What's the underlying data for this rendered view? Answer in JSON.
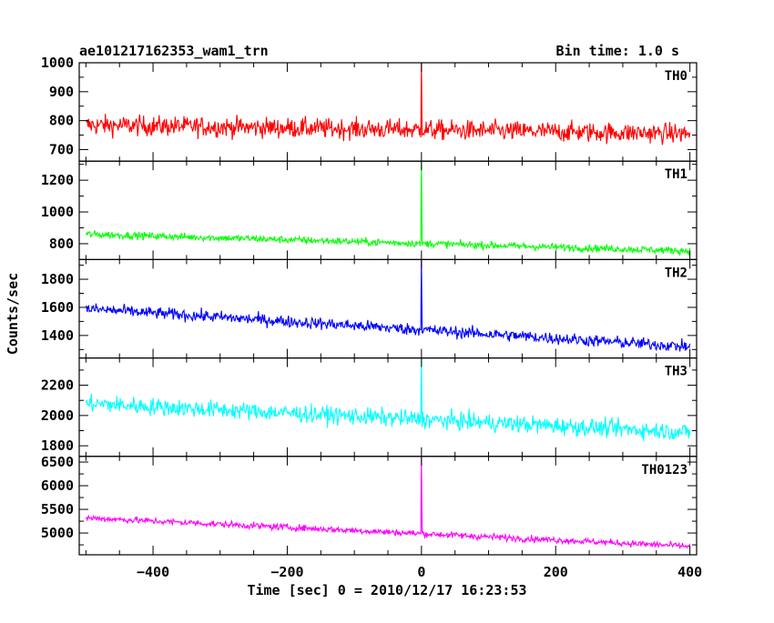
{
  "header": {
    "title": "ae101217162353_wam1_trn",
    "bin_time": "Bin time: 1.0 s"
  },
  "chart_data": {
    "type": "line",
    "title": "ae101217162353_wam1_trn",
    "xlabel": "Time [sec] 0 = 2010/12/17 16:23:53",
    "ylabel": "Counts/sec",
    "xlim": [
      -510,
      410
    ],
    "x_range": [
      -500,
      400
    ],
    "bin_time_s": 1.0,
    "x_ticks": [
      -400,
      -200,
      0,
      200,
      400
    ],
    "x_tick_labels": [
      "−400",
      "−200",
      "0",
      "200",
      "400"
    ],
    "grid": false,
    "series": [
      {
        "name": "TH0",
        "color": "#ff0000",
        "ylim": [
          660,
          1000
        ],
        "y_ticks": [
          700,
          800,
          900,
          1000
        ],
        "y_tick_labels": [
          "700",
          "800",
          "900",
          "1000"
        ],
        "trend_start": 785,
        "trend_end": 755,
        "noise_amplitude": 45,
        "spike_value": 1000
      },
      {
        "name": "TH1",
        "color": "#00ff00",
        "ylim": [
          700,
          1320
        ],
        "y_ticks": [
          800,
          1000,
          1200
        ],
        "y_tick_labels": [
          "800",
          "1000",
          "1200"
        ],
        "trend_start": 860,
        "trend_end": 755,
        "noise_amplitude": 30,
        "spike_value": 1320
      },
      {
        "name": "TH2",
        "color": "#0000ff",
        "ylim": [
          1240,
          1940
        ],
        "y_ticks": [
          1400,
          1600,
          1800
        ],
        "y_tick_labels": [
          "1400",
          "1600",
          "1800"
        ],
        "trend_start": 1590,
        "trend_end": 1320,
        "noise_amplitude": 55,
        "spike_value": 1940
      },
      {
        "name": "TH3",
        "color": "#00ffff",
        "ylim": [
          1730,
          2380
        ],
        "y_ticks": [
          1800,
          2000,
          2200
        ],
        "y_tick_labels": [
          "1800",
          "2000",
          "2200"
        ],
        "trend_start": 2080,
        "trend_end": 1890,
        "noise_amplitude": 75,
        "spike_value": 2380
      },
      {
        "name": "TH0123",
        "color": "#ff00ff",
        "ylim": [
          4540,
          6620
        ],
        "y_ticks": [
          5000,
          5500,
          6000,
          6500
        ],
        "y_tick_labels": [
          "5000",
          "5500",
          "6000",
          "6500"
        ],
        "trend_start": 5320,
        "trend_end": 4720,
        "noise_amplitude": 90,
        "spike_value": 6620
      }
    ]
  }
}
